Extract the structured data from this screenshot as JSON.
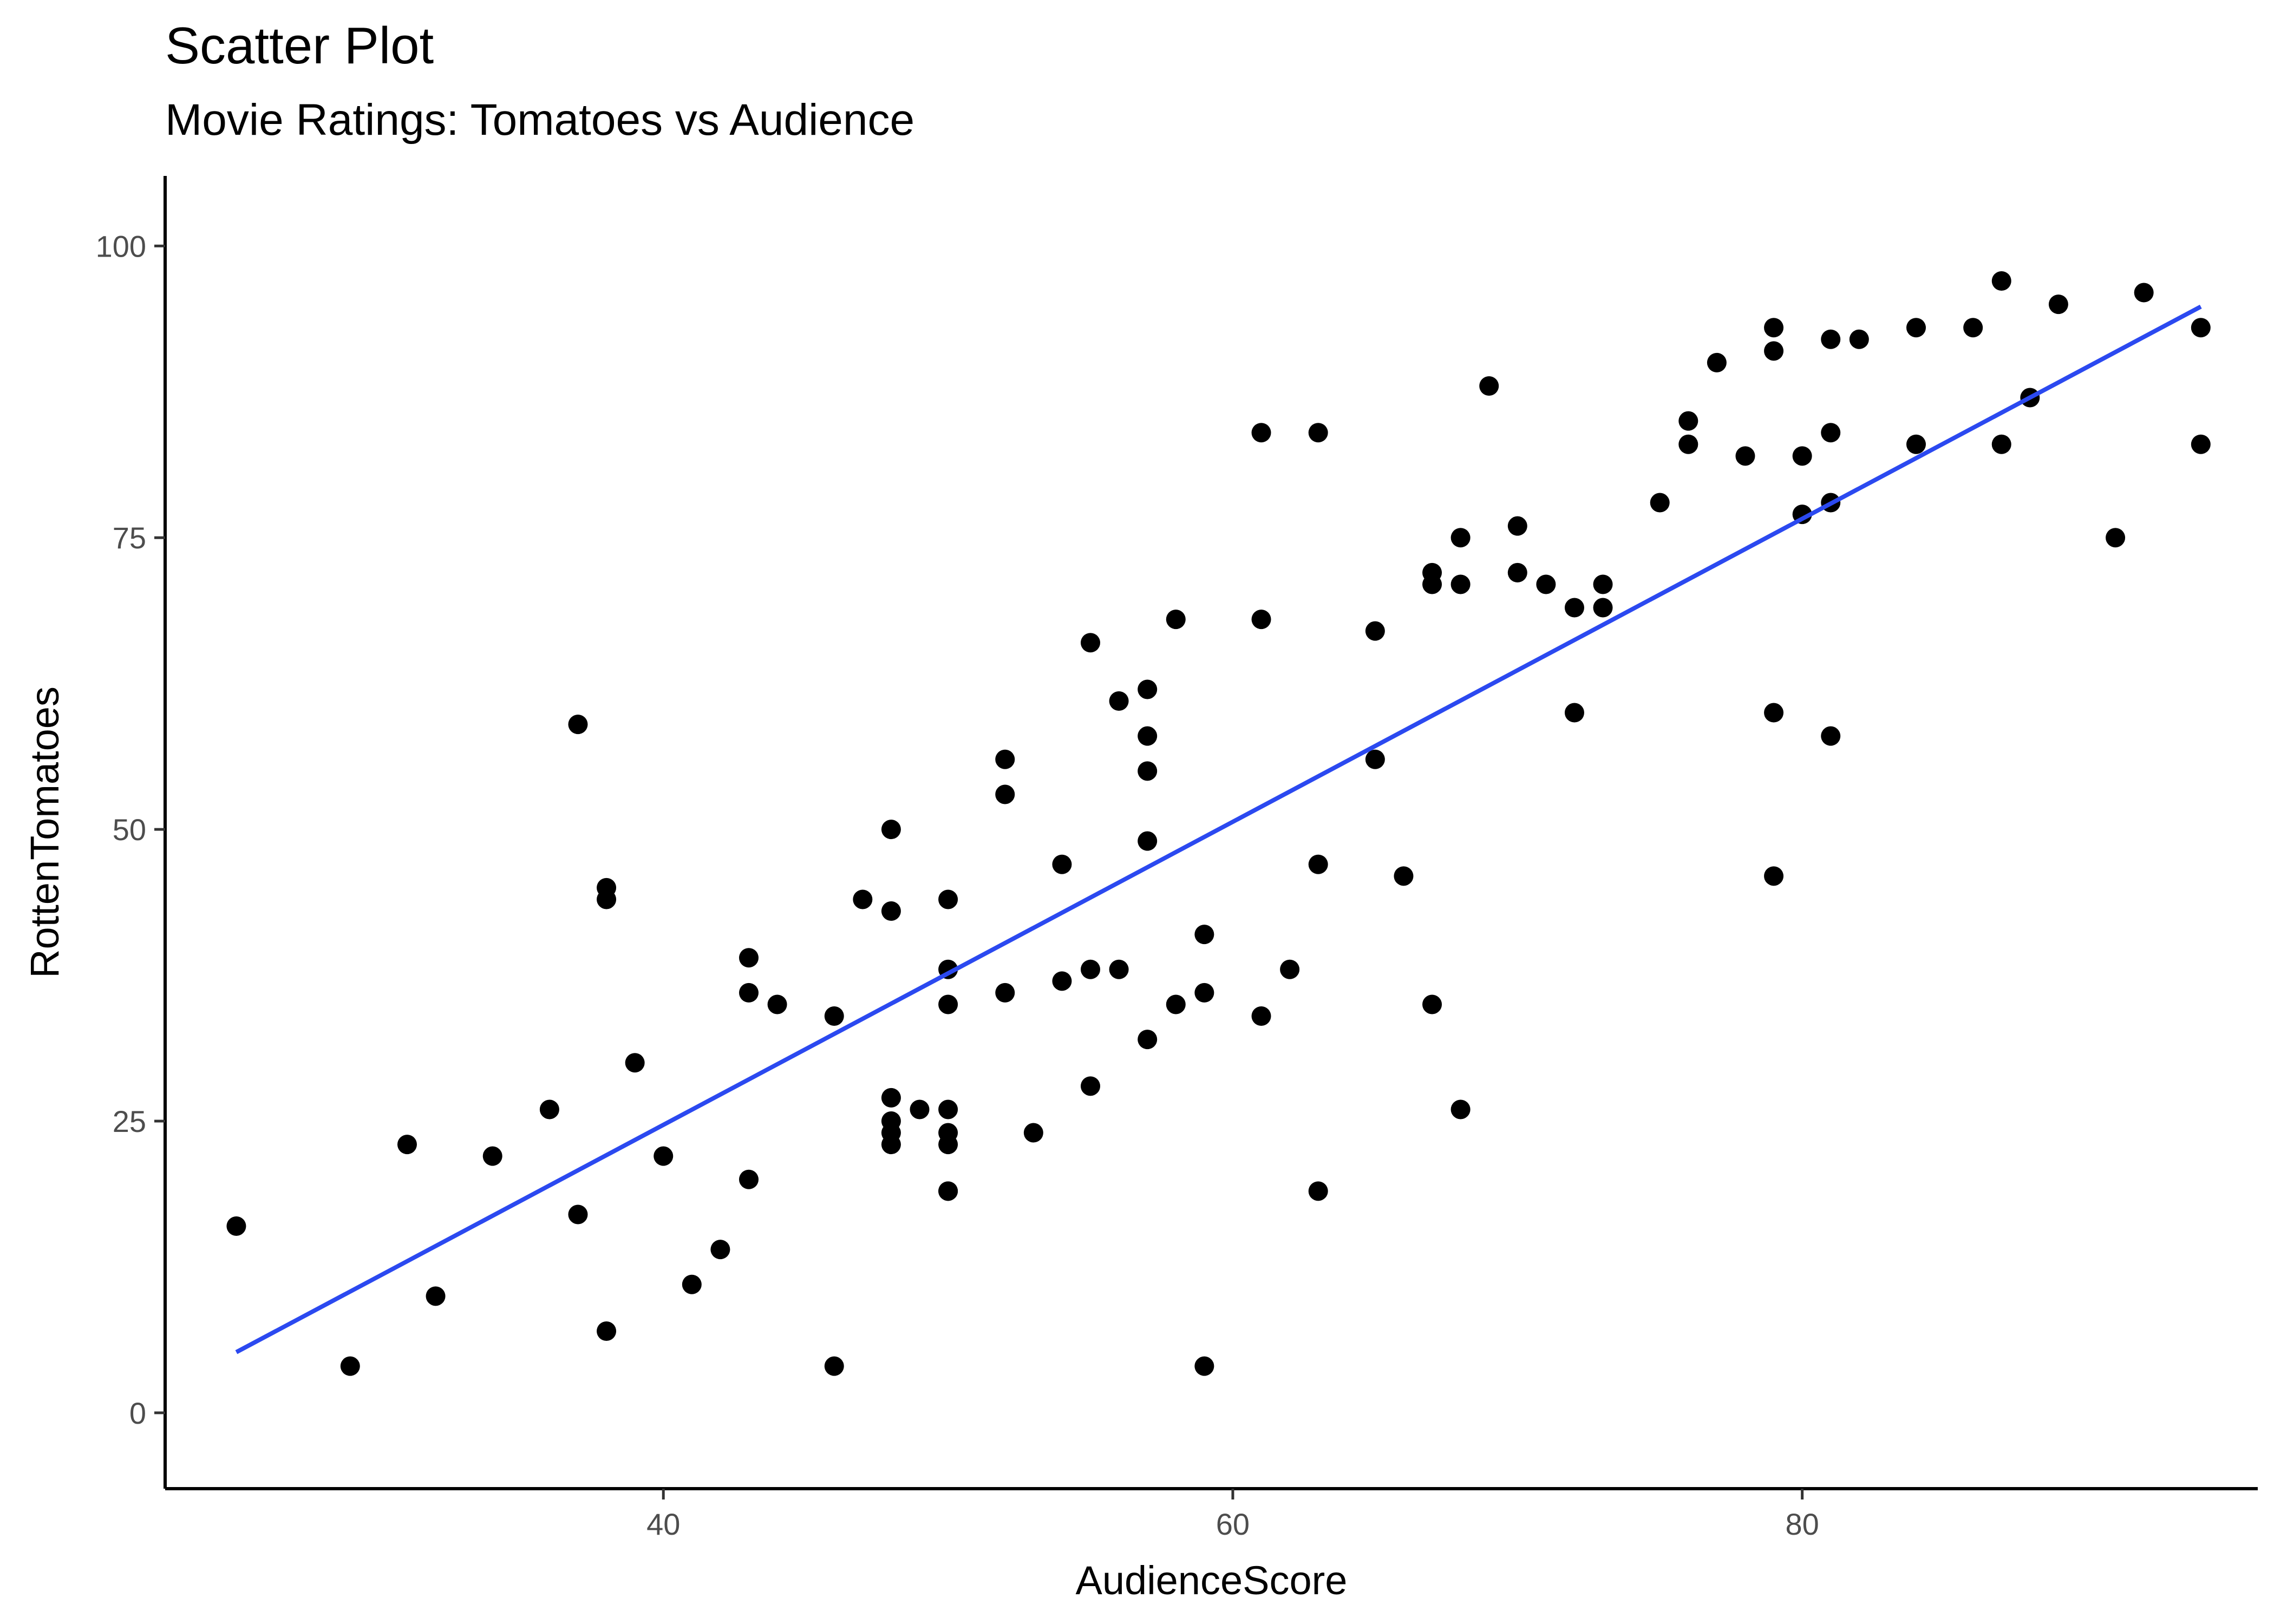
{
  "chart_data": {
    "type": "scatter",
    "title": "Scatter Plot",
    "subtitle": "Movie Ratings: Tomatoes vs Audience",
    "xlabel": "AudienceScore",
    "ylabel": "RottenTomatoes",
    "xlim": [
      22.5,
      96
    ],
    "ylim": [
      -6.5,
      106
    ],
    "xticks": [
      40,
      60,
      80
    ],
    "yticks": [
      0,
      25,
      50,
      75,
      100
    ],
    "grid": false,
    "legend": "none",
    "point_color": "#000000",
    "trend_line": {
      "type": "linear",
      "color": "#2B49F0",
      "x": [
        25,
        94
      ],
      "y": [
        5.2,
        94.8
      ]
    },
    "x": [
      25,
      29,
      31,
      32,
      34,
      36,
      37,
      37,
      38,
      38,
      38,
      39,
      40,
      41,
      42,
      43,
      43,
      43,
      44,
      46,
      46,
      47,
      48,
      48,
      48,
      48,
      48,
      48,
      49,
      50,
      50,
      50,
      50,
      50,
      50,
      50,
      50,
      52,
      52,
      52,
      53,
      54,
      54,
      55,
      55,
      55,
      56,
      56,
      57,
      57,
      57,
      57,
      57,
      58,
      58,
      59,
      59,
      59,
      61,
      61,
      61,
      62,
      63,
      63,
      63,
      65,
      65,
      66,
      67,
      67,
      67,
      68,
      68,
      68,
      69,
      70,
      70,
      71,
      72,
      72,
      73,
      73,
      75,
      76,
      76,
      77,
      78,
      79,
      79,
      79,
      79,
      80,
      80,
      81,
      81,
      81,
      81,
      82,
      84,
      84,
      86,
      87,
      87,
      88,
      89,
      91,
      92,
      94,
      94
    ],
    "y": [
      16,
      4,
      23,
      10,
      22,
      26,
      59,
      17,
      45,
      44,
      7,
      30,
      22,
      11,
      14,
      39,
      36,
      20,
      35,
      34,
      4,
      44,
      50,
      43,
      27,
      25,
      24,
      23,
      26,
      44,
      38,
      35,
      26,
      24,
      23,
      19,
      19,
      56,
      53,
      36,
      24,
      47,
      37,
      66,
      38,
      28,
      61,
      38,
      62,
      58,
      55,
      49,
      32,
      68,
      35,
      41,
      36,
      4,
      84,
      68,
      34,
      38,
      84,
      47,
      19,
      67,
      56,
      46,
      72,
      71,
      35,
      75,
      71,
      26,
      88,
      76,
      72,
      71,
      69,
      60,
      71,
      69,
      78,
      85,
      83,
      90,
      82,
      93,
      91,
      60,
      46,
      82,
      77,
      92,
      84,
      78,
      58,
      92,
      93,
      83,
      93,
      97,
      83,
      87,
      95,
      75,
      96,
      93,
      83
    ]
  }
}
